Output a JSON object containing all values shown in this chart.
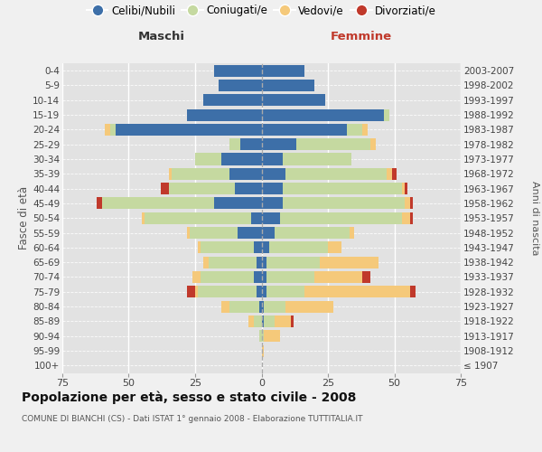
{
  "age_groups": [
    "100+",
    "95-99",
    "90-94",
    "85-89",
    "80-84",
    "75-79",
    "70-74",
    "65-69",
    "60-64",
    "55-59",
    "50-54",
    "45-49",
    "40-44",
    "35-39",
    "30-34",
    "25-29",
    "20-24",
    "15-19",
    "10-14",
    "5-9",
    "0-4"
  ],
  "birth_years": [
    "≤ 1907",
    "1908-1912",
    "1913-1917",
    "1918-1922",
    "1923-1927",
    "1928-1932",
    "1933-1937",
    "1938-1942",
    "1943-1947",
    "1948-1952",
    "1953-1957",
    "1958-1962",
    "1963-1967",
    "1968-1972",
    "1973-1977",
    "1978-1982",
    "1983-1987",
    "1988-1992",
    "1993-1997",
    "1998-2002",
    "2003-2007"
  ],
  "maschi": {
    "celibi": [
      0,
      0,
      0,
      0,
      1,
      2,
      3,
      2,
      3,
      9,
      4,
      18,
      10,
      12,
      15,
      8,
      55,
      28,
      22,
      16,
      18
    ],
    "coniugati": [
      0,
      0,
      1,
      3,
      11,
      22,
      20,
      18,
      20,
      18,
      40,
      42,
      25,
      22,
      10,
      4,
      2,
      0,
      0,
      0,
      0
    ],
    "vedovi": [
      0,
      0,
      0,
      2,
      3,
      1,
      3,
      2,
      1,
      1,
      1,
      0,
      0,
      1,
      0,
      0,
      2,
      0,
      0,
      0,
      0
    ],
    "divorziati": [
      0,
      0,
      0,
      0,
      0,
      3,
      0,
      0,
      0,
      0,
      0,
      2,
      3,
      0,
      0,
      0,
      0,
      0,
      0,
      0,
      0
    ]
  },
  "femmine": {
    "nubili": [
      0,
      0,
      0,
      1,
      1,
      2,
      2,
      2,
      3,
      5,
      7,
      8,
      8,
      9,
      8,
      13,
      32,
      46,
      24,
      20,
      16
    ],
    "coniugate": [
      0,
      0,
      1,
      4,
      8,
      14,
      18,
      20,
      22,
      28,
      46,
      46,
      45,
      38,
      26,
      28,
      6,
      2,
      0,
      0,
      0
    ],
    "vedove": [
      0,
      1,
      6,
      6,
      18,
      40,
      18,
      22,
      5,
      2,
      3,
      2,
      1,
      2,
      0,
      2,
      2,
      0,
      0,
      0,
      0
    ],
    "divorziate": [
      0,
      0,
      0,
      1,
      0,
      2,
      3,
      0,
      0,
      0,
      1,
      1,
      1,
      2,
      0,
      0,
      0,
      0,
      0,
      0,
      0
    ]
  },
  "colors": {
    "celibi": "#3d6fa8",
    "coniugati": "#c5d9a0",
    "vedovi": "#f5c97a",
    "divorziati": "#c0392b"
  },
  "xlim": 75,
  "title": "Popolazione per età, sesso e stato civile - 2008",
  "subtitle": "COMUNE DI BIANCHI (CS) - Dati ISTAT 1° gennaio 2008 - Elaborazione TUTTITALIA.IT",
  "ylabel_left": "Fasce di età",
  "ylabel_right": "Anni di nascita",
  "xlabel_maschi": "Maschi",
  "xlabel_femmine": "Femmine",
  "legend_labels": [
    "Celibi/Nubili",
    "Coniugati/e",
    "Vedovi/e",
    "Divorziati/e"
  ],
  "bg_color": "#f0f0f0",
  "plot_bg": "#e2e2e2"
}
